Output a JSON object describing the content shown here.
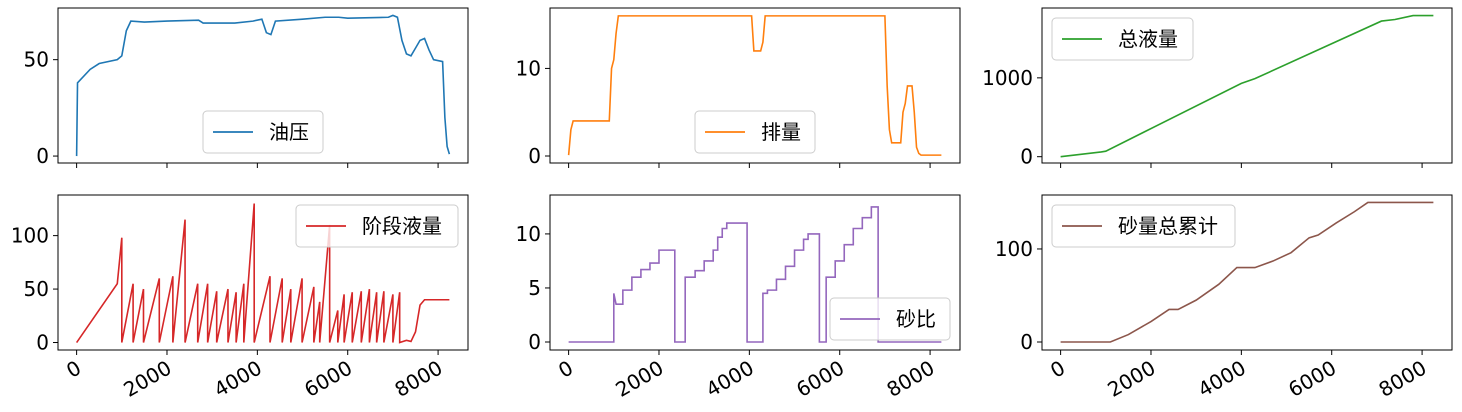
{
  "chart_data": [
    {
      "type": "line",
      "x": [
        0,
        20,
        300,
        500,
        900,
        1000,
        1100,
        1200,
        1500,
        2000,
        2700,
        2800,
        3500,
        3900,
        4100,
        4200,
        4300,
        4400,
        5000,
        5500,
        5800,
        6000,
        6900,
        7000,
        7100,
        7200,
        7300,
        7400,
        7500,
        7600,
        7700,
        7800,
        7900,
        8100,
        8150,
        8200,
        8250
      ],
      "series": [
        {
          "name": "油压",
          "color": "#1f77b4",
          "values": [
            0,
            38,
            45,
            48,
            50,
            52,
            65,
            70,
            69.5,
            70,
            70.5,
            69,
            69,
            70,
            71,
            64,
            63,
            70,
            71,
            72,
            72,
            71.5,
            72,
            73,
            72,
            60,
            53,
            52,
            56,
            60,
            61,
            55,
            50,
            49,
            20,
            5,
            1
          ]
        }
      ],
      "xlim": [
        -412,
        8662
      ],
      "ylim": [
        -3.6,
        76.8
      ],
      "xticks": [
        0,
        2000,
        4000,
        6000,
        8000
      ],
      "yticks": [
        0,
        50
      ],
      "legend": "lower center"
    },
    {
      "type": "line",
      "x": [
        0,
        50,
        100,
        900,
        950,
        1000,
        1050,
        1100,
        4050,
        4100,
        4250,
        4300,
        4350,
        7000,
        7050,
        7100,
        7150,
        7350,
        7400,
        7450,
        7500,
        7600,
        7650,
        7700,
        7750,
        7800,
        8250
      ],
      "series": [
        {
          "name": "排量",
          "color": "#ff7f0e",
          "values": [
            0.1,
            3,
            4,
            4,
            10,
            11,
            14,
            16,
            16,
            12,
            12,
            13,
            16,
            16,
            8,
            3,
            1.5,
            1.5,
            5,
            6,
            8,
            8,
            5,
            1,
            0.3,
            0.1,
            0.1
          ]
        }
      ],
      "xlim": [
        -412,
        8662
      ],
      "ylim": [
        -0.8,
        16.9
      ],
      "xticks": [
        0,
        2000,
        4000,
        6000,
        8000
      ],
      "yticks": [
        0,
        10
      ],
      "legend": "lower center"
    },
    {
      "type": "line",
      "x": [
        0,
        900,
        1000,
        4000,
        4300,
        7100,
        7400,
        7800,
        8250
      ],
      "series": [
        {
          "name": "总液量",
          "color": "#2ca02c",
          "values": [
            0,
            60,
            70,
            930,
            990,
            1720,
            1740,
            1790,
            1790
          ]
        }
      ],
      "xlim": [
        -412,
        8662
      ],
      "ylim": [
        -80,
        1886
      ],
      "xticks": [
        0,
        2000,
        4000,
        6000,
        8000
      ],
      "yticks": [
        0,
        1000
      ],
      "legend": "upper left"
    },
    {
      "type": "line",
      "x": [
        0,
        900,
        1000,
        1000,
        1250,
        1250,
        1480,
        1480,
        1830,
        1830,
        2130,
        2130,
        2400,
        2400,
        2680,
        2680,
        2900,
        2900,
        3100,
        3100,
        3350,
        3350,
        3530,
        3530,
        3700,
        3700,
        3930,
        3930,
        4280,
        4280,
        4550,
        4550,
        4740,
        4740,
        4990,
        4990,
        5250,
        5250,
        5380,
        5380,
        5600,
        5600,
        5780,
        5780,
        5920,
        5920,
        6100,
        6100,
        6300,
        6300,
        6480,
        6480,
        6640,
        6640,
        6800,
        6800,
        7000,
        7000,
        7150,
        7150,
        7300,
        7400,
        7500,
        7600,
        7700,
        8250
      ],
      "series": [
        {
          "name": "阶段液量",
          "color": "#d62728",
          "values": [
            0,
            55,
            98,
            0,
            55,
            0,
            50,
            0,
            60,
            0,
            62,
            0,
            115,
            0,
            55,
            0,
            55,
            0,
            48,
            0,
            50,
            0,
            47,
            0,
            55,
            0,
            130,
            0,
            62,
            0,
            60,
            0,
            50,
            0,
            60,
            0,
            52,
            0,
            38,
            0,
            110,
            0,
            30,
            0,
            45,
            0,
            47,
            0,
            48,
            0,
            50,
            0,
            47,
            0,
            48,
            0,
            45,
            0,
            47,
            0,
            2,
            1,
            10,
            35,
            40,
            40
          ]
        }
      ],
      "xlim": [
        -412,
        8662
      ],
      "ylim": [
        -7,
        138
      ],
      "xticks": [
        0,
        2000,
        4000,
        6000,
        8000
      ],
      "yticks": [
        0,
        50,
        100
      ],
      "legend": "upper right"
    },
    {
      "type": "line",
      "x": [
        0,
        1000,
        1000,
        1050,
        1200,
        1200,
        1400,
        1400,
        1600,
        1600,
        1800,
        1800,
        2000,
        2000,
        2350,
        2350,
        2580,
        2580,
        2800,
        2800,
        3000,
        3000,
        3200,
        3200,
        3300,
        3300,
        3400,
        3400,
        3500,
        3500,
        3950,
        3950,
        4300,
        4300,
        4400,
        4400,
        4600,
        4600,
        4800,
        4800,
        5000,
        5000,
        5200,
        5200,
        5300,
        5300,
        5550,
        5550,
        5700,
        5700,
        5900,
        5900,
        6100,
        6100,
        6300,
        6300,
        6500,
        6500,
        6700,
        6700,
        6850,
        6850,
        8250
      ],
      "series": [
        {
          "name": "砂比",
          "color": "#9467bd",
          "values": [
            0,
            0,
            4.5,
            3.5,
            3.5,
            4.8,
            4.8,
            6,
            6,
            6.7,
            6.7,
            7.3,
            7.3,
            8.5,
            8.5,
            0,
            0,
            6,
            6,
            6.6,
            6.6,
            7.5,
            7.5,
            8.5,
            8.5,
            9.7,
            9.7,
            10.5,
            10.5,
            11,
            11,
            0,
            0,
            4.5,
            4.5,
            4.8,
            4.8,
            5.8,
            5.8,
            7,
            7,
            8.5,
            8.5,
            9.5,
            9.5,
            10,
            10,
            0,
            0,
            6,
            6,
            7.5,
            7.5,
            9,
            9,
            10.5,
            10.5,
            11.5,
            11.5,
            12.5,
            12.5,
            0,
            0
          ]
        }
      ],
      "xlim": [
        -412,
        8662
      ],
      "ylim": [
        -0.74,
        13.6
      ],
      "xticks": [
        0,
        2000,
        4000,
        6000,
        8000
      ],
      "yticks": [
        0,
        5,
        10
      ],
      "legend": "lower right"
    },
    {
      "type": "line",
      "x": [
        0,
        1100,
        1500,
        2000,
        2400,
        2600,
        3000,
        3500,
        3900,
        4300,
        4700,
        5100,
        5500,
        5700,
        6100,
        6500,
        6800,
        8250
      ],
      "series": [
        {
          "name": "砂量总累计",
          "color": "#8c564b",
          "values": [
            0,
            0,
            8,
            22,
            35,
            35,
            45,
            62,
            80,
            80,
            87,
            96,
            112,
            115,
            128,
            140,
            150,
            150
          ]
        }
      ],
      "xlim": [
        -412,
        8662
      ],
      "ylim": [
        -8.6,
        158
      ],
      "xticks": [
        0,
        2000,
        4000,
        6000,
        8000
      ],
      "yticks": [
        0,
        100
      ],
      "legend": "upper left"
    }
  ]
}
